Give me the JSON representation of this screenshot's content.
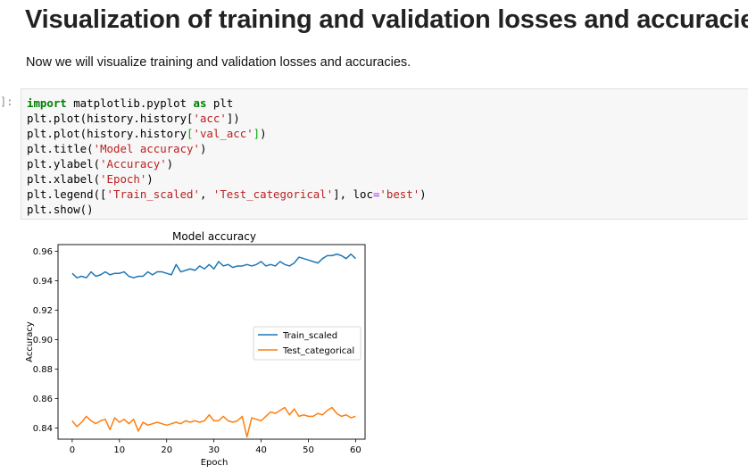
{
  "notebook": {
    "heading": "Visualization of training and validation losses and accuracies",
    "intro_text": "Now we will visualize training and validation losses and accuracies.",
    "cell_prompt": "]:",
    "code_lines": [
      [
        {
          "t": "import",
          "c": "kw"
        },
        {
          "t": " matplotlib.pyplot ",
          "c": "n"
        },
        {
          "t": "as",
          "c": "kw"
        },
        {
          "t": " plt",
          "c": "n"
        }
      ],
      [
        {
          "t": "plt.plot(history.history[",
          "c": "n"
        },
        {
          "t": "'acc'",
          "c": "s"
        },
        {
          "t": "])",
          "c": "n"
        }
      ],
      [
        {
          "t": "plt.plot(history.history",
          "c": "n"
        },
        {
          "t": "[",
          "c": "g"
        },
        {
          "t": "'val_acc'",
          "c": "s"
        },
        {
          "t": "]",
          "c": "g"
        },
        {
          "t": ")",
          "c": "n"
        }
      ],
      [
        {
          "t": "plt.title(",
          "c": "n"
        },
        {
          "t": "'Model accuracy'",
          "c": "s"
        },
        {
          "t": ")",
          "c": "n"
        }
      ],
      [
        {
          "t": "plt.ylabel(",
          "c": "n"
        },
        {
          "t": "'Accuracy'",
          "c": "s"
        },
        {
          "t": ")",
          "c": "n"
        }
      ],
      [
        {
          "t": "plt.xlabel(",
          "c": "n"
        },
        {
          "t": "'Epoch'",
          "c": "s"
        },
        {
          "t": ")",
          "c": "n"
        }
      ],
      [
        {
          "t": "plt.legend([",
          "c": "n"
        },
        {
          "t": "'Train_scaled'",
          "c": "s"
        },
        {
          "t": ", ",
          "c": "n"
        },
        {
          "t": "'Test_categorical'",
          "c": "s"
        },
        {
          "t": "], loc",
          "c": "n"
        },
        {
          "t": "=",
          "c": "op"
        },
        {
          "t": "'best'",
          "c": "s"
        },
        {
          "t": ")",
          "c": "n"
        }
      ],
      [
        {
          "t": "plt.show()",
          "c": "n"
        }
      ]
    ],
    "code_colors": {
      "kw": "#008000",
      "n": "#000000",
      "s": "#ba2121",
      "g": "#00aa00",
      "op": "#aa22ff"
    }
  },
  "chart_data": {
    "type": "line",
    "title": "Model accuracy",
    "xlabel": "Epoch",
    "ylabel": "Accuracy",
    "xlim": [
      -3,
      62
    ],
    "ylim": [
      0.8325,
      0.9645
    ],
    "x_ticks": [
      0,
      10,
      20,
      30,
      40,
      50,
      60
    ],
    "y_ticks": [
      0.84,
      0.86,
      0.88,
      0.9,
      0.92,
      0.94,
      0.96
    ],
    "y_tick_labels": [
      "0.84",
      "0.86",
      "0.88",
      "0.90",
      "0.92",
      "0.94",
      "0.96"
    ],
    "legend_position": "center-right",
    "series": [
      {
        "name": "Train_scaled",
        "color": "#1f77b4",
        "values": [
          0.945,
          0.942,
          0.943,
          0.942,
          0.946,
          0.943,
          0.944,
          0.946,
          0.944,
          0.945,
          0.945,
          0.946,
          0.943,
          0.942,
          0.943,
          0.943,
          0.946,
          0.944,
          0.946,
          0.946,
          0.945,
          0.944,
          0.951,
          0.946,
          0.947,
          0.948,
          0.947,
          0.95,
          0.948,
          0.951,
          0.948,
          0.953,
          0.95,
          0.951,
          0.949,
          0.95,
          0.95,
          0.951,
          0.95,
          0.951,
          0.953,
          0.95,
          0.951,
          0.95,
          0.953,
          0.951,
          0.95,
          0.952,
          0.956,
          0.955,
          0.954,
          0.953,
          0.952,
          0.955,
          0.957,
          0.957,
          0.958,
          0.957,
          0.955,
          0.958,
          0.955
        ]
      },
      {
        "name": "Test_categorical",
        "color": "#ff7f0e",
        "values": [
          0.845,
          0.841,
          0.844,
          0.848,
          0.845,
          0.843,
          0.845,
          0.846,
          0.839,
          0.847,
          0.844,
          0.846,
          0.843,
          0.846,
          0.838,
          0.844,
          0.842,
          0.843,
          0.844,
          0.843,
          0.842,
          0.843,
          0.844,
          0.843,
          0.845,
          0.844,
          0.845,
          0.844,
          0.845,
          0.849,
          0.845,
          0.845,
          0.848,
          0.845,
          0.844,
          0.845,
          0.848,
          0.834,
          0.847,
          0.846,
          0.845,
          0.848,
          0.851,
          0.85,
          0.852,
          0.854,
          0.849,
          0.853,
          0.848,
          0.849,
          0.848,
          0.848,
          0.85,
          0.849,
          0.852,
          0.854,
          0.85,
          0.848,
          0.849,
          0.847,
          0.848
        ]
      }
    ]
  }
}
